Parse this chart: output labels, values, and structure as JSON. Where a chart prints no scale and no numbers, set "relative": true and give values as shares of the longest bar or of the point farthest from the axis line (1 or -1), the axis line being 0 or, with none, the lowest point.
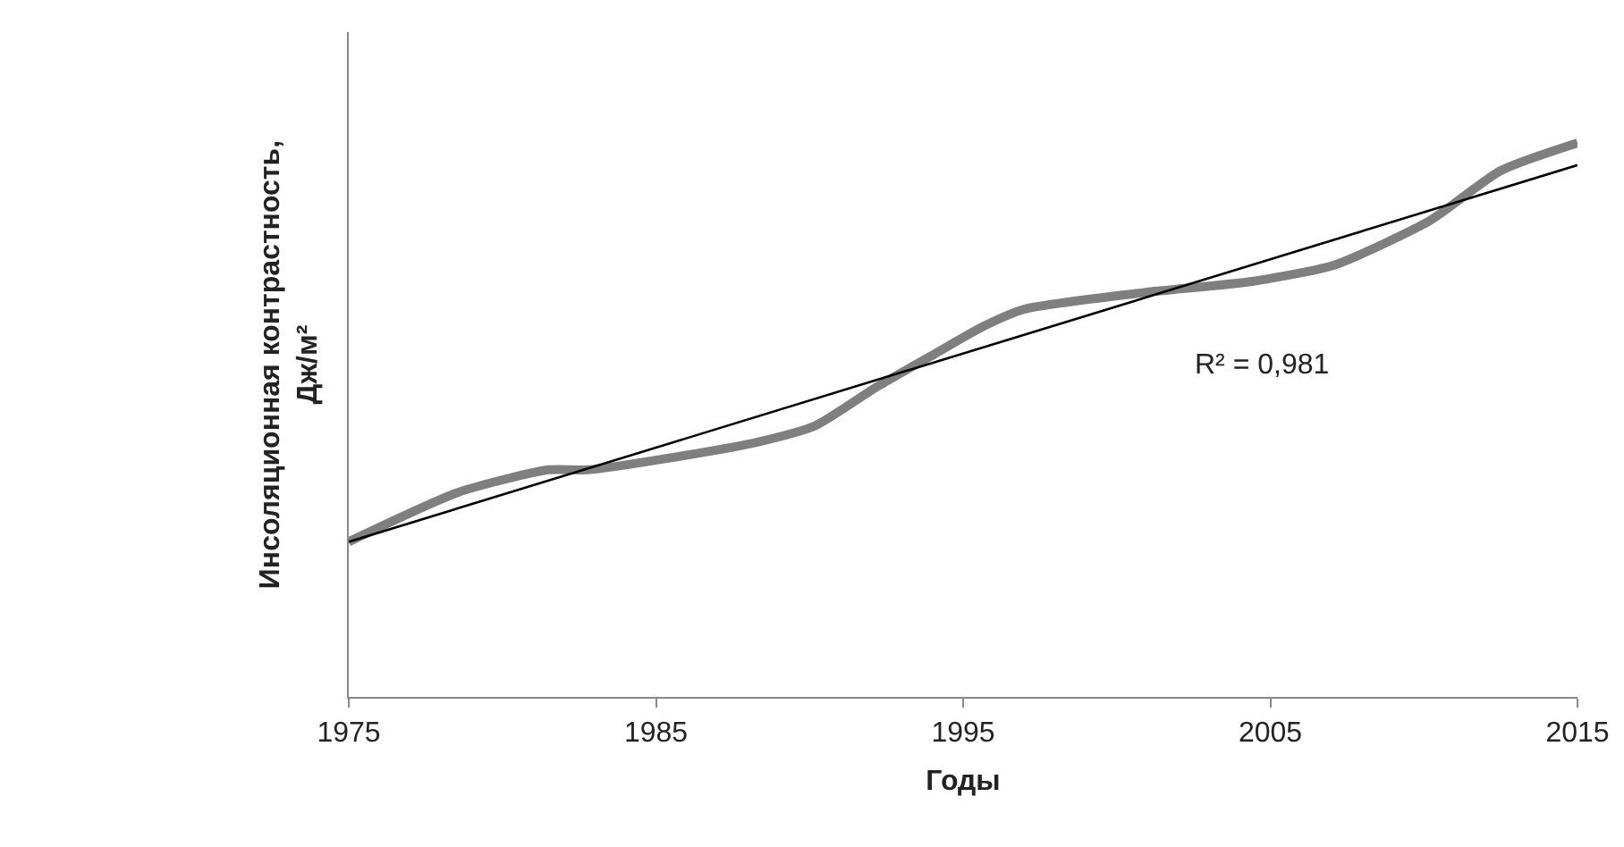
{
  "chart_data": {
    "type": "line",
    "relative": true,
    "xlabel": "Годы",
    "ylabel": "Инсоляционная контрастность, Дж/м²",
    "x": [
      1975,
      1978.6,
      1981.5,
      1982.8,
      1985.3,
      1988.3,
      1990.2,
      1992.2,
      1994.1,
      1995.7,
      1997,
      2000.9,
      2004.4,
      2007.1,
      2010.2,
      2012.5,
      2015
    ],
    "series": [
      {
        "color": "#7f7f7f",
        "values": [
          0.28,
          0.37,
          0.41,
          0.41,
          0.43,
          0.46,
          0.49,
          0.56,
          0.62,
          0.67,
          0.7,
          0.73,
          0.75,
          0.78,
          0.86,
          0.95,
          1
        ]
      },
      {
        "type": "line",
        "color": "#000000",
        "x": [
          1975,
          2015
        ],
        "values": [
          0.28,
          0.96
        ]
      }
    ],
    "xlim": [
      1975,
      2015
    ],
    "xticks": [
      1975,
      1985,
      1995,
      2005,
      2015
    ],
    "annotations": [
      "R² = 0,981"
    ],
    "marker": "none",
    "line_style": "solid"
  }
}
